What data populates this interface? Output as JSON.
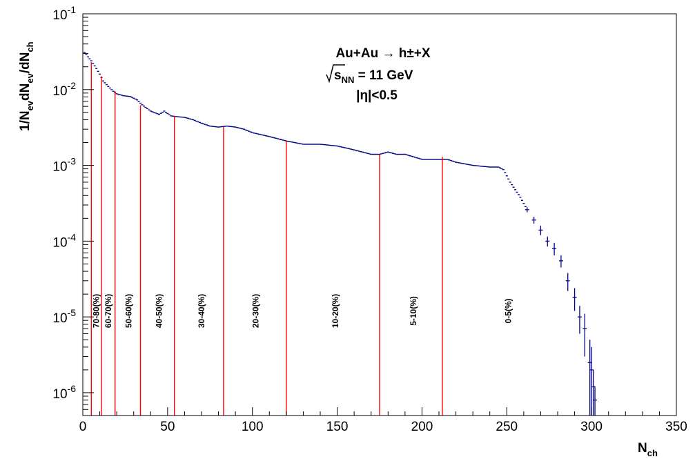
{
  "chart_data": {
    "type": "scatter",
    "title": "",
    "xlabel": {
      "main": "N",
      "sub": "ch"
    },
    "ylabel": "1/N_ev dN_ev/dN_ch",
    "xlim": [
      0,
      350
    ],
    "ylim": [
      5e-07,
      0.1
    ],
    "y_scale": "log",
    "grid": false,
    "x_ticks": [
      "0",
      "50",
      "100",
      "150",
      "200",
      "250",
      "300",
      "350"
    ],
    "y_ticks": [
      {
        "value": 1e-06,
        "base": "10",
        "exp": "-6"
      },
      {
        "value": 1e-05,
        "base": "10",
        "exp": "-5"
      },
      {
        "value": 0.0001,
        "base": "10",
        "exp": "-4"
      },
      {
        "value": 0.001,
        "base": "10",
        "exp": "-3"
      },
      {
        "value": 0.01,
        "base": "10",
        "exp": "-2"
      },
      {
        "value": 0.1,
        "base": "10",
        "exp": "-1"
      }
    ],
    "annotations": {
      "line1": "Au+Au  → h±+X",
      "line2_main": "s",
      "line2_sub": "NN",
      "line2_rest": " = 11 GeV",
      "line3": "|η|<0.5"
    },
    "colors": {
      "data": "#000080",
      "cut": "#ff0000",
      "axis": "#000000"
    },
    "anchors": [
      [
        1,
        0.031
      ],
      [
        3,
        0.027
      ],
      [
        5,
        0.024
      ],
      [
        8,
        0.019
      ],
      [
        10,
        0.016
      ],
      [
        12,
        0.013
      ],
      [
        15,
        0.011
      ],
      [
        18,
        0.0095
      ],
      [
        20,
        0.0088
      ],
      [
        24,
        0.0083
      ],
      [
        28,
        0.0081
      ],
      [
        32,
        0.0073
      ],
      [
        35,
        0.0063
      ],
      [
        40,
        0.0052
      ],
      [
        45,
        0.0047
      ],
      [
        48,
        0.0052
      ],
      [
        52,
        0.0045
      ],
      [
        55,
        0.0044
      ],
      [
        60,
        0.0043
      ],
      [
        65,
        0.004
      ],
      [
        70,
        0.0036
      ],
      [
        75,
        0.0033
      ],
      [
        80,
        0.0032
      ],
      [
        85,
        0.0033
      ],
      [
        90,
        0.0032
      ],
      [
        95,
        0.003
      ],
      [
        100,
        0.0027
      ],
      [
        110,
        0.0024
      ],
      [
        120,
        0.0021
      ],
      [
        130,
        0.0019
      ],
      [
        140,
        0.0019
      ],
      [
        150,
        0.0018
      ],
      [
        155,
        0.0017
      ],
      [
        160,
        0.0016
      ],
      [
        170,
        0.0014
      ],
      [
        175,
        0.0014
      ],
      [
        180,
        0.0015
      ],
      [
        185,
        0.0014
      ],
      [
        190,
        0.0014
      ],
      [
        200,
        0.0012
      ],
      [
        210,
        0.0012
      ],
      [
        215,
        0.0012
      ],
      [
        220,
        0.0011
      ],
      [
        230,
        0.001
      ],
      [
        240,
        0.00095
      ],
      [
        245,
        0.00095
      ],
      [
        248,
        0.00088
      ],
      [
        252,
        0.0006
      ],
      [
        258,
        0.00038
      ],
      [
        262,
        0.00026
      ],
      [
        266,
        0.00019
      ],
      [
        270,
        0.00014
      ],
      [
        274,
        0.0001
      ],
      [
        278,
        8e-05
      ],
      [
        282,
        5.5e-05
      ],
      [
        286,
        3e-05
      ],
      [
        290,
        1.8e-05
      ],
      [
        293,
        1e-05
      ],
      [
        296,
        7e-06
      ],
      [
        299,
        2.5e-06
      ],
      [
        301,
        1.2e-06
      ],
      [
        302,
        8e-07
      ]
    ],
    "points_with_errors": [
      {
        "x": 262,
        "y": 0.00026,
        "err": 2e-05
      },
      {
        "x": 266,
        "y": 0.00019,
        "err": 2e-05
      },
      {
        "x": 270,
        "y": 0.00014,
        "err": 2e-05
      },
      {
        "x": 274,
        "y": 0.0001,
        "err": 1.5e-05
      },
      {
        "x": 278,
        "y": 8e-05,
        "err": 1.5e-05
      },
      {
        "x": 282,
        "y": 5.5e-05,
        "err": 1e-05
      },
      {
        "x": 286,
        "y": 3e-05,
        "err": 8e-06
      },
      {
        "x": 290,
        "y": 1.8e-05,
        "err": 6e-06
      },
      {
        "x": 293,
        "y": 1e-05,
        "err": 4e-06
      },
      {
        "x": 296,
        "y": 7e-06,
        "err": 4e-06
      },
      {
        "x": 299,
        "y": 2.5e-06,
        "err": 2.5e-06
      },
      {
        "x": 300,
        "y": 2e-06,
        "err": 2e-06
      },
      {
        "x": 301,
        "y": 1.2e-06,
        "err": 8e-07
      },
      {
        "x": 302,
        "y": 8e-07,
        "err": 4e-07
      }
    ],
    "centrality_cuts": [
      {
        "label": "70-80(%)",
        "x": 5,
        "y_top": 0.023,
        "label_x": 8
      },
      {
        "label": "60-70(%)",
        "x": 11,
        "y_top": 0.015,
        "label_x": 15
      },
      {
        "label": "50-60(%)",
        "x": 19,
        "y_top": 0.0095,
        "label_x": 27
      },
      {
        "label": "40-50(%)",
        "x": 34,
        "y_top": 0.0062,
        "label_x": 45
      },
      {
        "label": "30-40(%)",
        "x": 54,
        "y_top": 0.0045,
        "label_x": 70
      },
      {
        "label": "20-30(%)",
        "x": 83,
        "y_top": 0.0032,
        "label_x": 102
      },
      {
        "label": "10-20(%)",
        "x": 120,
        "y_top": 0.0021,
        "label_x": 149
      },
      {
        "label": "5-10(%)",
        "x": 175,
        "y_top": 0.0014,
        "label_x": 195
      },
      {
        "label": "0-5(%)",
        "x": 212,
        "y_top": 0.0013,
        "label_x": 251
      }
    ]
  }
}
